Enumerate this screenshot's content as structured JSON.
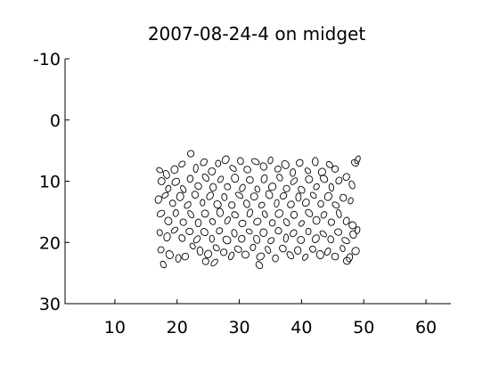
{
  "chart_data": {
    "type": "scatter",
    "title": "2007-08-24-4 on midget",
    "xlabel": "",
    "ylabel": "",
    "xlim": [
      2,
      64
    ],
    "ylim": [
      -10,
      30
    ],
    "y_reversed": true,
    "x_ticks": [
      "10",
      "20",
      "30",
      "40",
      "50",
      "60"
    ],
    "x_tick_values": [
      10,
      20,
      30,
      40,
      50,
      60
    ],
    "y_ticks": [
      "-10",
      "0",
      "10",
      "20",
      "30"
    ],
    "y_tick_values": [
      -10,
      0,
      10,
      20,
      30
    ],
    "grid": false,
    "legend": "none",
    "marker": "ellipse outline",
    "mark_color": "#000000",
    "points": [
      [
        17.2,
        8.2
      ],
      [
        18.3,
        8.9
      ],
      [
        19.6,
        8.1
      ],
      [
        20.8,
        7.2
      ],
      [
        22.2,
        5.5
      ],
      [
        23.0,
        7.9
      ],
      [
        24.3,
        6.9
      ],
      [
        25.6,
        8.4
      ],
      [
        26.6,
        7.1
      ],
      [
        27.8,
        6.5
      ],
      [
        29.0,
        7.9
      ],
      [
        30.2,
        6.7
      ],
      [
        31.3,
        8.1
      ],
      [
        32.6,
        6.8
      ],
      [
        33.9,
        7.6
      ],
      [
        35.0,
        6.6
      ],
      [
        36.2,
        8.0
      ],
      [
        37.4,
        7.3
      ],
      [
        38.6,
        8.6
      ],
      [
        39.7,
        7.0
      ],
      [
        41.0,
        8.3
      ],
      [
        42.2,
        6.8
      ],
      [
        43.3,
        8.5
      ],
      [
        44.5,
        7.3
      ],
      [
        45.4,
        8.0
      ],
      [
        49.0,
        6.5
      ],
      [
        48.6,
        7.0
      ],
      [
        17.5,
        10.0
      ],
      [
        18.6,
        11.2
      ],
      [
        19.8,
        10.1
      ],
      [
        21.0,
        11.3
      ],
      [
        22.1,
        9.6
      ],
      [
        23.4,
        10.8
      ],
      [
        24.6,
        9.4
      ],
      [
        25.8,
        11.0
      ],
      [
        27.0,
        9.7
      ],
      [
        28.1,
        10.9
      ],
      [
        29.3,
        9.5
      ],
      [
        30.5,
        11.1
      ],
      [
        31.7,
        9.8
      ],
      [
        32.9,
        11.3
      ],
      [
        34.0,
        9.6
      ],
      [
        35.3,
        10.9
      ],
      [
        36.5,
        9.4
      ],
      [
        37.6,
        11.2
      ],
      [
        38.8,
        10.0
      ],
      [
        40.0,
        11.4
      ],
      [
        41.2,
        9.7
      ],
      [
        42.4,
        10.9
      ],
      [
        43.6,
        9.6
      ],
      [
        44.8,
        11.0
      ],
      [
        46.0,
        9.9
      ],
      [
        47.2,
        9.3
      ],
      [
        48.1,
        10.6
      ],
      [
        17.0,
        13.0
      ],
      [
        18.1,
        12.3
      ],
      [
        19.3,
        13.6
      ],
      [
        20.5,
        12.5
      ],
      [
        21.7,
        13.9
      ],
      [
        22.9,
        12.2
      ],
      [
        24.1,
        13.5
      ],
      [
        25.3,
        12.4
      ],
      [
        26.5,
        13.8
      ],
      [
        27.6,
        12.6
      ],
      [
        28.8,
        13.9
      ],
      [
        30.0,
        12.3
      ],
      [
        31.2,
        13.7
      ],
      [
        32.4,
        12.5
      ],
      [
        33.6,
        13.9
      ],
      [
        34.8,
        12.2
      ],
      [
        36.0,
        13.6
      ],
      [
        37.1,
        12.4
      ],
      [
        38.3,
        13.8
      ],
      [
        39.5,
        12.6
      ],
      [
        40.7,
        13.5
      ],
      [
        41.9,
        12.3
      ],
      [
        43.1,
        13.7
      ],
      [
        44.3,
        12.5
      ],
      [
        45.5,
        13.9
      ],
      [
        46.7,
        12.7
      ],
      [
        47.9,
        13.2
      ],
      [
        17.4,
        15.3
      ],
      [
        18.6,
        16.5
      ],
      [
        19.8,
        15.2
      ],
      [
        21.0,
        16.7
      ],
      [
        22.2,
        15.4
      ],
      [
        23.4,
        16.8
      ],
      [
        24.5,
        15.3
      ],
      [
        25.7,
        16.6
      ],
      [
        26.9,
        15.1
      ],
      [
        28.1,
        16.4
      ],
      [
        29.3,
        15.5
      ],
      [
        30.5,
        16.9
      ],
      [
        31.7,
        15.2
      ],
      [
        32.9,
        16.6
      ],
      [
        34.1,
        15.4
      ],
      [
        35.3,
        16.8
      ],
      [
        36.4,
        15.3
      ],
      [
        37.6,
        16.7
      ],
      [
        38.8,
        15.5
      ],
      [
        40.0,
        16.9
      ],
      [
        41.2,
        15.2
      ],
      [
        42.4,
        16.4
      ],
      [
        43.6,
        15.5
      ],
      [
        44.8,
        16.7
      ],
      [
        46.0,
        15.3
      ],
      [
        47.2,
        16.5
      ],
      [
        48.2,
        17.2
      ],
      [
        17.2,
        18.4
      ],
      [
        18.4,
        19.1
      ],
      [
        19.6,
        18.0
      ],
      [
        20.8,
        19.3
      ],
      [
        22.0,
        18.2
      ],
      [
        23.2,
        19.5
      ],
      [
        24.4,
        18.3
      ],
      [
        25.6,
        19.4
      ],
      [
        26.8,
        18.1
      ],
      [
        28.0,
        19.6
      ],
      [
        29.2,
        18.5
      ],
      [
        30.4,
        19.4
      ],
      [
        31.6,
        18.2
      ],
      [
        32.8,
        19.5
      ],
      [
        33.9,
        18.4
      ],
      [
        35.1,
        19.7
      ],
      [
        36.3,
        18.1
      ],
      [
        37.5,
        19.3
      ],
      [
        38.7,
        18.5
      ],
      [
        39.9,
        19.6
      ],
      [
        41.1,
        18.2
      ],
      [
        42.3,
        19.4
      ],
      [
        43.5,
        18.6
      ],
      [
        44.7,
        19.5
      ],
      [
        45.9,
        18.3
      ],
      [
        47.1,
        19.7
      ],
      [
        48.3,
        18.7
      ],
      [
        49.0,
        18.0
      ],
      [
        17.4,
        21.2
      ],
      [
        18.8,
        22.0
      ],
      [
        20.2,
        22.6
      ],
      [
        21.3,
        22.3
      ],
      [
        22.5,
        20.6
      ],
      [
        23.7,
        21.4
      ],
      [
        25.0,
        21.9
      ],
      [
        26.3,
        20.9
      ],
      [
        27.5,
        21.6
      ],
      [
        28.7,
        22.2
      ],
      [
        29.8,
        21.1
      ],
      [
        31.0,
        22.0
      ],
      [
        32.2,
        20.8
      ],
      [
        33.4,
        22.3
      ],
      [
        34.6,
        21.2
      ],
      [
        35.8,
        22.6
      ],
      [
        37.0,
        21.0
      ],
      [
        38.2,
        22.1
      ],
      [
        39.4,
        21.3
      ],
      [
        40.6,
        22.4
      ],
      [
        41.8,
        21.1
      ],
      [
        43.0,
        22.0
      ],
      [
        44.2,
        21.5
      ],
      [
        45.4,
        22.3
      ],
      [
        46.6,
        21.0
      ],
      [
        47.7,
        22.5
      ],
      [
        48.7,
        21.4
      ],
      [
        17.8,
        23.6
      ],
      [
        24.6,
        23.1
      ],
      [
        26.0,
        23.3
      ],
      [
        33.2,
        23.7
      ],
      [
        47.3,
        23.0
      ]
    ]
  }
}
